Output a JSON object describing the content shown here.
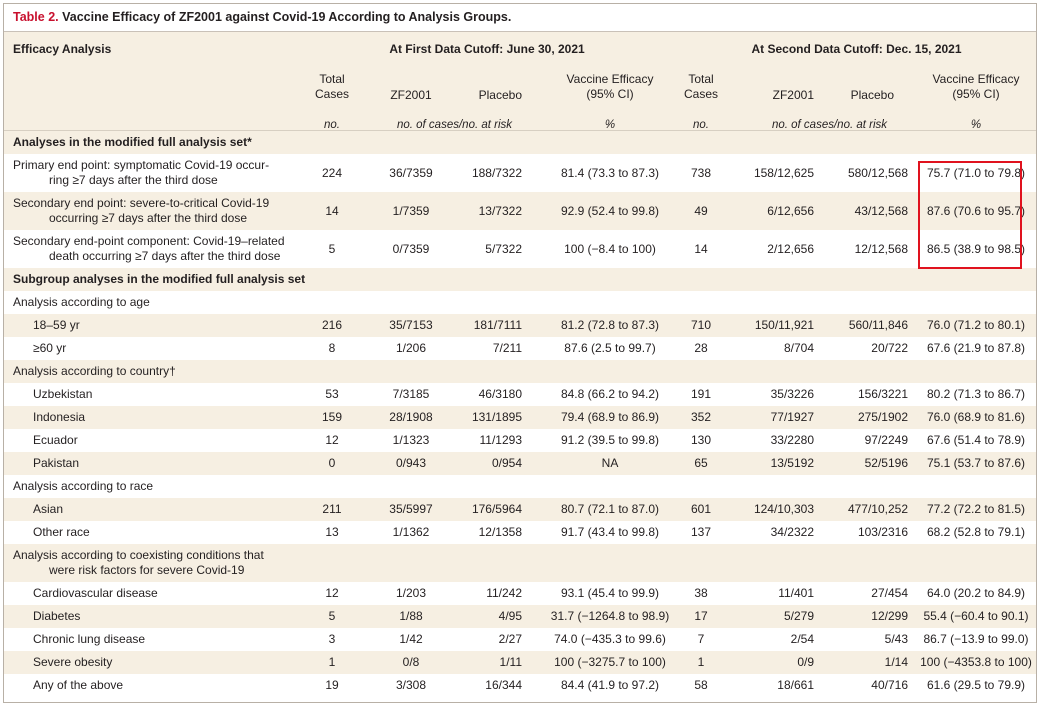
{
  "table": {
    "title_prefix": "Table 2.",
    "title_text": " Vaccine Efficacy of ZF2001 against Covid-19 According to Analysis Groups."
  },
  "header": {
    "efficacy_analysis": "Efficacy Analysis",
    "cutoff1": "At First Data Cutoff: June 30, 2021",
    "cutoff2": "At Second Data Cutoff: Dec. 15, 2021",
    "total_cases_line1": "Total",
    "total_cases_line2": "Cases",
    "zf2001": "ZF2001",
    "placebo": "Placebo",
    "ve_line1": "Vaccine Efficacy",
    "ve_line2": "(95% CI)",
    "unit_no": "no.",
    "unit_cases_at_risk": "no. of cases/no. at risk",
    "unit_percent": "%"
  },
  "rows": [
    {
      "type": "section",
      "label": "Analyses in the modified full analysis set*",
      "shaded": true
    },
    {
      "type": "data",
      "tall": true,
      "label": "Primary end point: symptomatic Covid-19 occur-",
      "label2": "ring ≥7 days after the third dose",
      "v": [
        "224",
        "36/7359",
        "188/7322",
        "81.4 (73.3 to 87.3)",
        "738",
        "158/12,625",
        "580/12,568",
        "75.7 (71.0 to 79.8)"
      ]
    },
    {
      "type": "data",
      "tall": true,
      "shaded": true,
      "label": "Secondary end point: severe-to-critical Covid-19",
      "label2": "occurring ≥7 days after the third dose",
      "v": [
        "14",
        "1/7359",
        "13/7322",
        "92.9 (52.4 to 99.8)",
        "49",
        "6/12,656",
        "43/12,568",
        "87.6 (70.6 to 95.7)"
      ]
    },
    {
      "type": "data",
      "tall": true,
      "label": "Secondary end-point component: Covid-19–related",
      "label2": "death occurring ≥7 days after the third dose",
      "v": [
        "5",
        "0/7359",
        "5/7322",
        "100 (−8.4 to 100)",
        "14",
        "2/12,656",
        "12/12,568",
        "86.5 (38.9 to 98.5)"
      ]
    },
    {
      "type": "section",
      "label": "Subgroup analyses in the modified full analysis set",
      "shaded": true
    },
    {
      "type": "group",
      "label": "Analysis according to age"
    },
    {
      "type": "data",
      "indent": true,
      "shaded": true,
      "label": "18–59 yr",
      "v": [
        "216",
        "35/7153",
        "181/7111",
        "81.2 (72.8 to 87.3)",
        "710",
        "150/11,921",
        "560/11,846",
        "76.0 (71.2 to 80.1)"
      ]
    },
    {
      "type": "data",
      "indent": true,
      "label": "≥60 yr",
      "v": [
        "8",
        "1/206",
        "7/211",
        "87.6 (2.5 to 99.7)",
        "28",
        "8/704",
        "20/722",
        "67.6 (21.9 to 87.8)"
      ]
    },
    {
      "type": "group",
      "shaded": true,
      "label": "Analysis according to country†"
    },
    {
      "type": "data",
      "indent": true,
      "label": "Uzbekistan",
      "v": [
        "53",
        "7/3185",
        "46/3180",
        "84.8 (66.2 to 94.2)",
        "191",
        "35/3226",
        "156/3221",
        "80.2 (71.3 to 86.7)"
      ]
    },
    {
      "type": "data",
      "indent": true,
      "shaded": true,
      "label": "Indonesia",
      "v": [
        "159",
        "28/1908",
        "131/1895",
        "79.4 (68.9 to 86.9)",
        "352",
        "77/1927",
        "275/1902",
        "76.0 (68.9 to 81.6)"
      ]
    },
    {
      "type": "data",
      "indent": true,
      "label": "Ecuador",
      "v": [
        "12",
        "1/1323",
        "11/1293",
        "91.2 (39.5 to 99.8)",
        "130",
        "33/2280",
        "97/2249",
        "67.6 (51.4 to 78.9)"
      ]
    },
    {
      "type": "data",
      "indent": true,
      "shaded": true,
      "label": "Pakistan",
      "v": [
        "0",
        "0/943",
        "0/954",
        "NA",
        "65",
        "13/5192",
        "52/5196",
        "75.1 (53.7 to 87.6)"
      ]
    },
    {
      "type": "group",
      "label": "Analysis according to race"
    },
    {
      "type": "data",
      "indent": true,
      "shaded": true,
      "label": "Asian",
      "v": [
        "211",
        "35/5997",
        "176/5964",
        "80.7 (72.1 to 87.0)",
        "601",
        "124/10,303",
        "477/10,252",
        "77.2 (72.2 to 81.5)"
      ]
    },
    {
      "type": "data",
      "indent": true,
      "label": "Other race",
      "v": [
        "13",
        "1/1362",
        "12/1358",
        "91.7 (43.4 to 99.8)",
        "137",
        "34/2322",
        "103/2316",
        "68.2 (52.8 to 79.1)"
      ]
    },
    {
      "type": "group",
      "tall": true,
      "shaded": true,
      "label": "Analysis according to coexisting conditions that",
      "label2": "were risk factors for severe Covid-19"
    },
    {
      "type": "data",
      "indent": true,
      "label": "Cardiovascular disease",
      "v": [
        "12",
        "1/203",
        "11/242",
        "93.1 (45.4 to 99.9)",
        "38",
        "11/401",
        "27/454",
        "64.0 (20.2 to 84.9)"
      ]
    },
    {
      "type": "data",
      "indent": true,
      "shaded": true,
      "label": "Diabetes",
      "v": [
        "5",
        "1/88",
        "4/95",
        "31.7 (−1264.8 to 98.9)",
        "17",
        "5/279",
        "12/299",
        "55.4 (−60.4 to 90.1)"
      ]
    },
    {
      "type": "data",
      "indent": true,
      "label": "Chronic lung disease",
      "v": [
        "3",
        "1/42",
        "2/27",
        "74.0 (−435.3 to 99.6)",
        "7",
        "2/54",
        "5/43",
        "86.7 (−13.9 to 99.0)"
      ]
    },
    {
      "type": "data",
      "indent": true,
      "shaded": true,
      "label": "Severe obesity",
      "v": [
        "1",
        "0/8",
        "1/11",
        "100 (−3275.7 to 100)",
        "1",
        "0/9",
        "1/14",
        "100 (−4353.8 to 100)"
      ]
    },
    {
      "type": "data",
      "indent": true,
      "label": "Any of the above",
      "v": [
        "19",
        "3/308",
        "16/344",
        "84.4 (41.9 to 97.2)",
        "58",
        "18/661",
        "40/716",
        "61.6 (29.5 to 79.9)"
      ]
    }
  ],
  "colors": {
    "shade": "#f6efe2",
    "title_number": "#c8102e",
    "highlight_box": "#e0121e"
  }
}
